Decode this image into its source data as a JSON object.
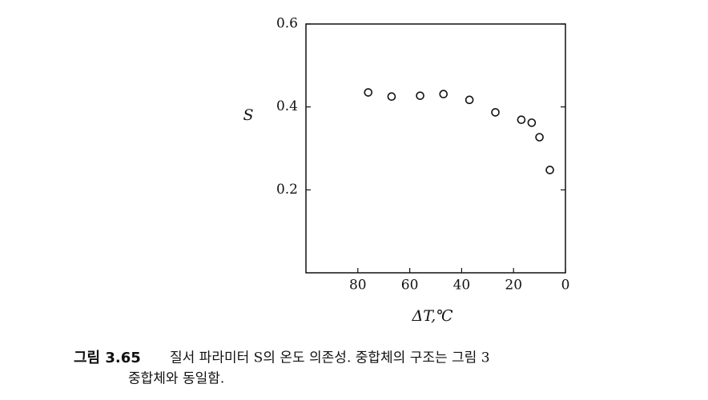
{
  "chart_data": {
    "type": "scatter",
    "x_label": "ΔT,℃",
    "y_label": "S",
    "figure_label": "그림 3.65",
    "caption": [
      "질서 파라미터 S의 온도 의존성. 중합체의 구조는 그림 3",
      "중합체와 동일함."
    ],
    "x": [
      76,
      67,
      56,
      47,
      37,
      27,
      17,
      13,
      10,
      6
    ],
    "values": [
      0.435,
      0.425,
      0.427,
      0.431,
      0.417,
      0.387,
      0.369,
      0.362,
      0.327,
      0.248
    ],
    "color": "#111111",
    "xlim": [
      100,
      0
    ],
    "xticks": [
      80,
      60,
      40,
      20,
      0
    ],
    "ylim": [
      0,
      0.6
    ],
    "yticks": [
      0.2,
      0.4,
      0.6
    ],
    "grid": false
  }
}
